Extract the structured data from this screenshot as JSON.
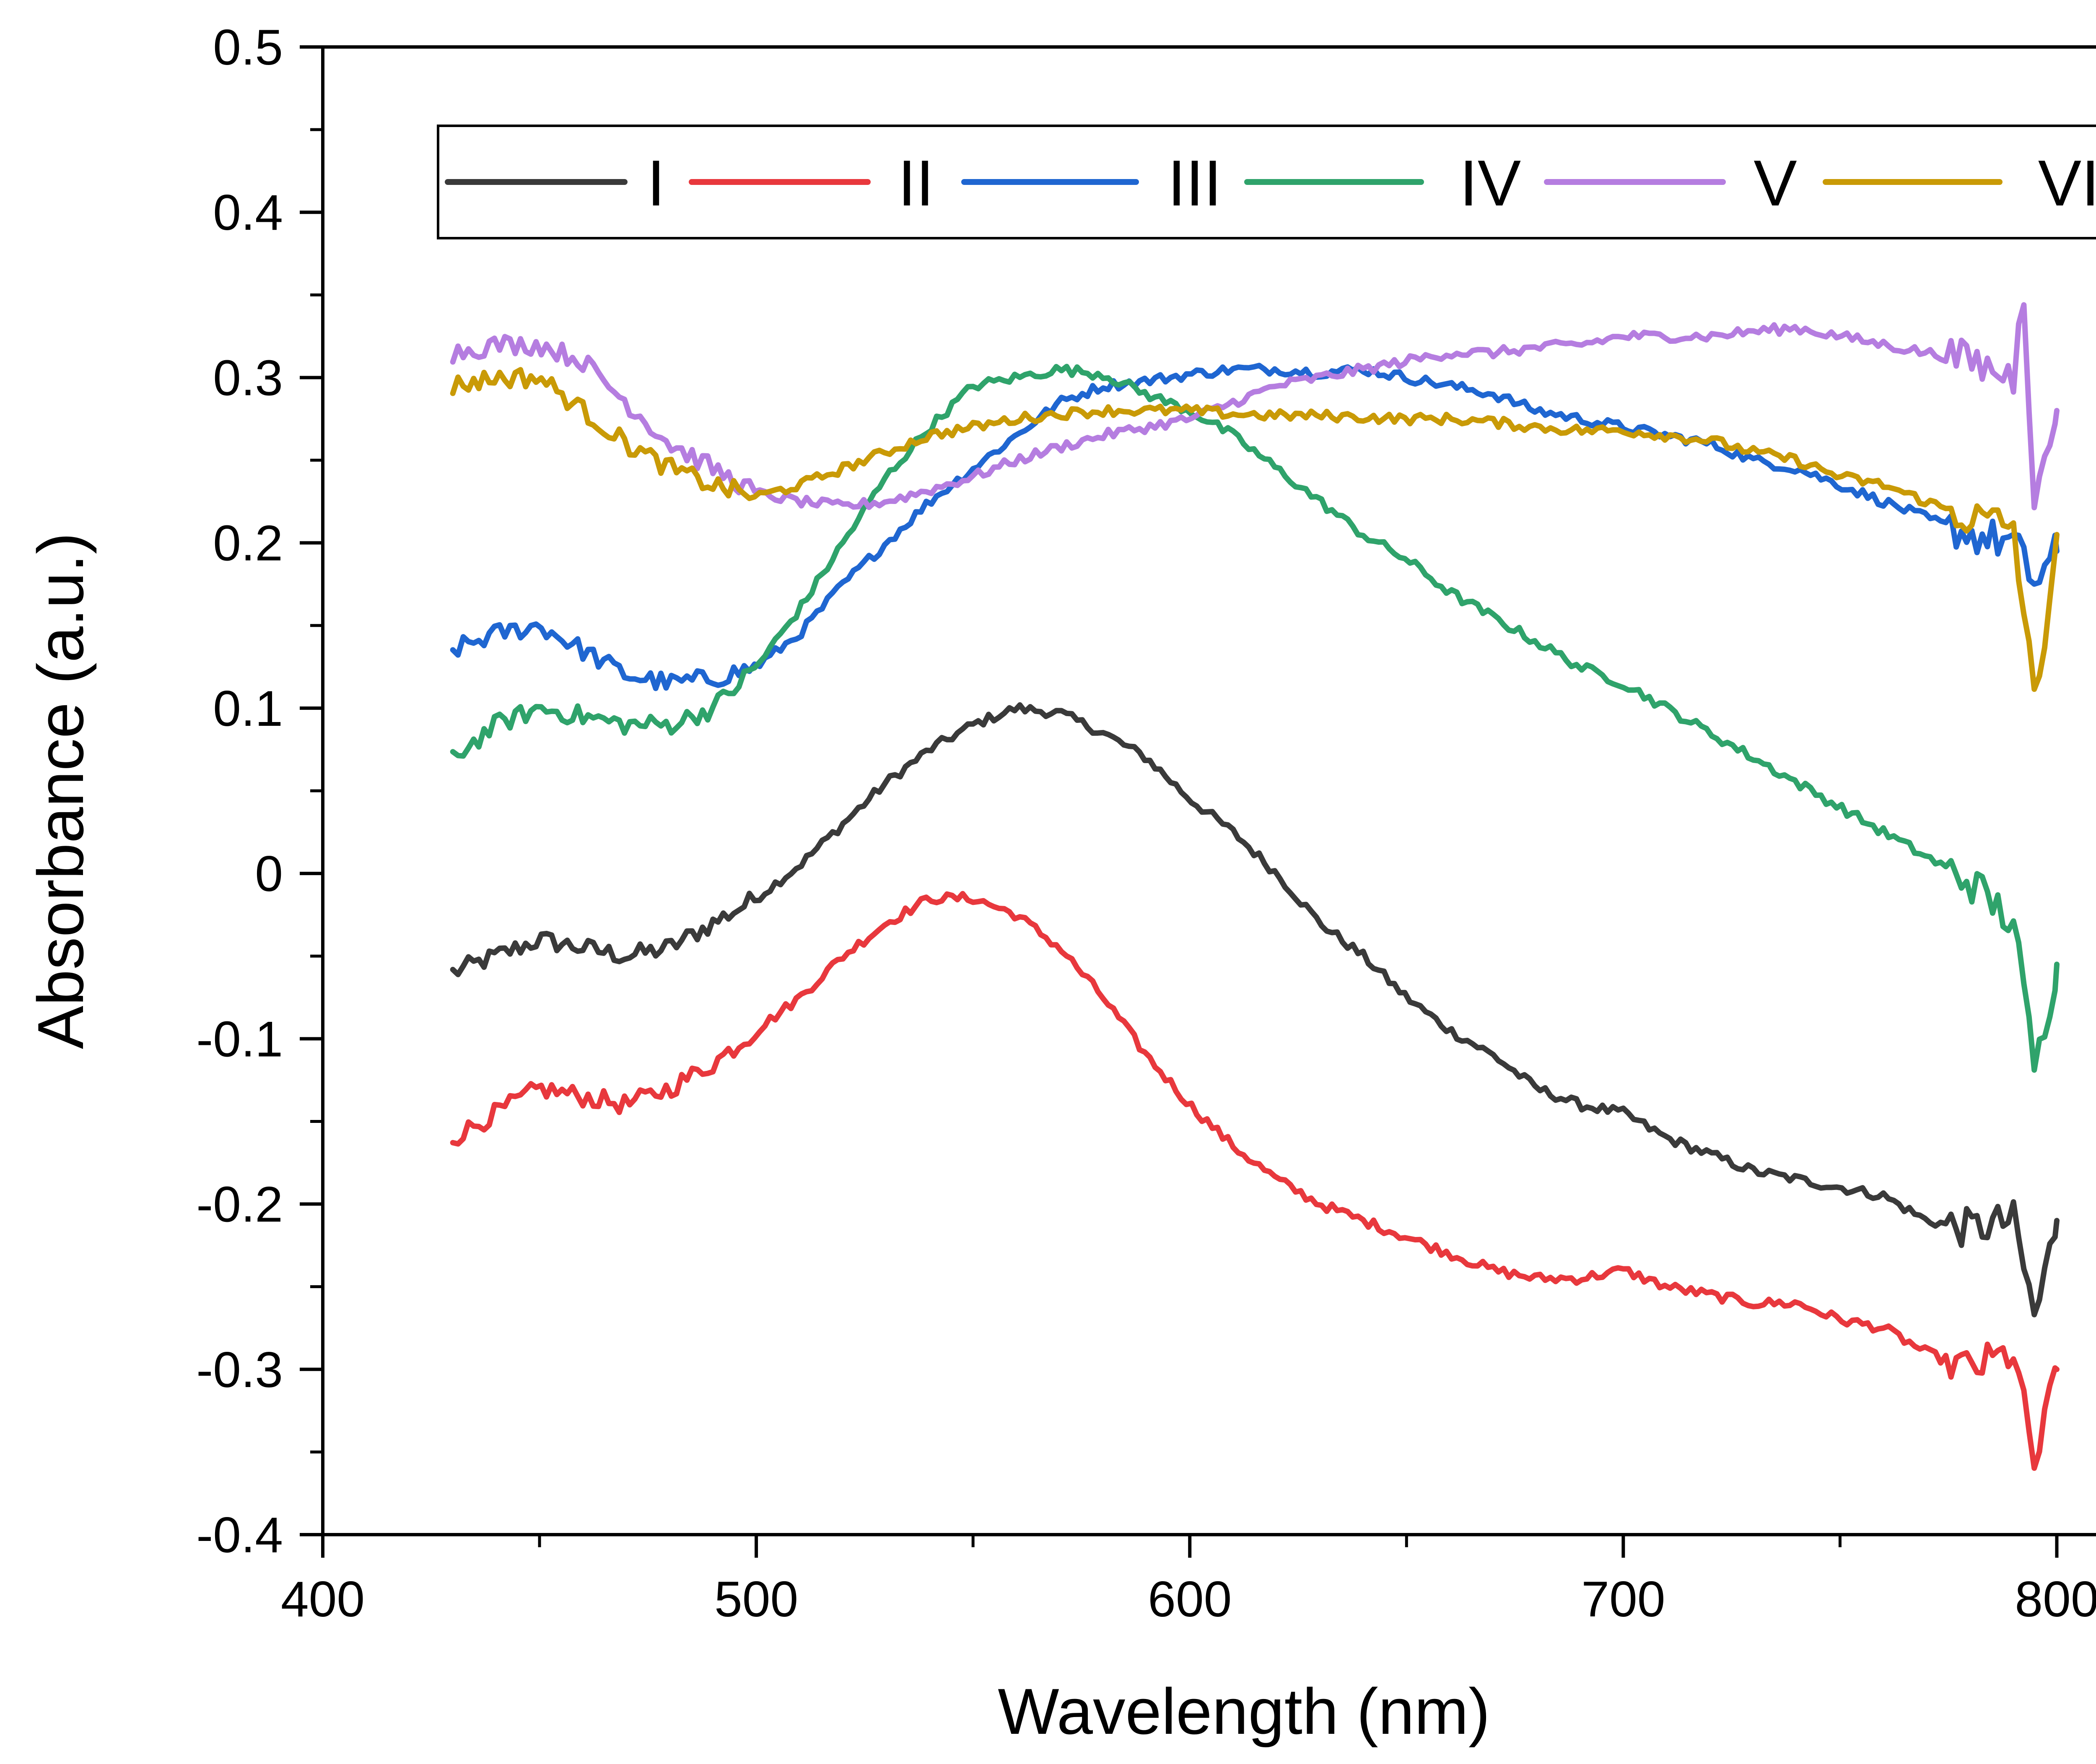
{
  "chart_data": {
    "type": "line",
    "title": "",
    "xlabel": "Wavelength (nm)",
    "ylabel": "Absorbance (a.u.)",
    "xlim": [
      400,
      825
    ],
    "ylim": [
      -0.4,
      0.5
    ],
    "xticks": [
      400,
      500,
      600,
      700,
      800
    ],
    "yticks": [
      -0.4,
      -0.3,
      -0.2,
      -0.1,
      0,
      0.1,
      0.2,
      0.3,
      0.4,
      0.5
    ],
    "xtick_labels": [
      "400",
      "500",
      "600",
      "700",
      "800"
    ],
    "ytick_labels": [
      "-0.4",
      "-0.3",
      "-0.2",
      "-0.1",
      "0",
      "0.1",
      "0.2",
      "0.3",
      "0.4",
      "0.5"
    ],
    "grid": false,
    "legend_position": "top",
    "series": [
      {
        "name": "I",
        "color": "#3a3a3a",
        "x": [
          430,
          440,
          450,
          460,
          470,
          480,
          490,
          500,
          510,
          520,
          530,
          540,
          550,
          560,
          570,
          580,
          590,
          600,
          610,
          620,
          630,
          640,
          650,
          660,
          670,
          680,
          690,
          700,
          710,
          720,
          730,
          740,
          750,
          760,
          770,
          780,
          790,
          795,
          800
        ],
        "y": [
          -0.06,
          -0.05,
          -0.04,
          -0.045,
          -0.05,
          -0.045,
          -0.03,
          -0.015,
          0.005,
          0.03,
          0.055,
          0.075,
          0.09,
          0.1,
          0.097,
          0.085,
          0.07,
          0.045,
          0.025,
          0.0,
          -0.03,
          -0.05,
          -0.075,
          -0.095,
          -0.11,
          -0.13,
          -0.14,
          -0.145,
          -0.16,
          -0.17,
          -0.18,
          -0.185,
          -0.19,
          -0.195,
          -0.21,
          -0.215,
          -0.21,
          -0.27,
          -0.21
        ]
      },
      {
        "name": "II",
        "color": "#e8383d",
        "x": [
          430,
          440,
          450,
          460,
          470,
          480,
          490,
          500,
          510,
          520,
          530,
          540,
          550,
          560,
          570,
          580,
          590,
          600,
          610,
          620,
          630,
          640,
          650,
          660,
          670,
          680,
          690,
          700,
          710,
          720,
          730,
          740,
          750,
          760,
          770,
          780,
          790,
          795,
          800
        ],
        "y": [
          -0.16,
          -0.145,
          -0.13,
          -0.135,
          -0.14,
          -0.13,
          -0.115,
          -0.095,
          -0.075,
          -0.05,
          -0.03,
          -0.015,
          -0.015,
          -0.025,
          -0.045,
          -0.075,
          -0.11,
          -0.14,
          -0.165,
          -0.185,
          -0.2,
          -0.21,
          -0.22,
          -0.23,
          -0.24,
          -0.245,
          -0.245,
          -0.24,
          -0.25,
          -0.255,
          -0.26,
          -0.26,
          -0.27,
          -0.275,
          -0.29,
          -0.3,
          -0.29,
          -0.36,
          -0.3
        ]
      },
      {
        "name": "III",
        "color": "#1f66d1",
        "x": [
          430,
          440,
          450,
          460,
          470,
          480,
          490,
          500,
          510,
          520,
          530,
          540,
          550,
          560,
          570,
          580,
          590,
          600,
          610,
          620,
          630,
          640,
          650,
          660,
          670,
          680,
          690,
          700,
          710,
          720,
          730,
          740,
          750,
          760,
          770,
          780,
          790,
          795,
          800
        ],
        "y": [
          0.135,
          0.145,
          0.15,
          0.135,
          0.12,
          0.115,
          0.118,
          0.125,
          0.145,
          0.175,
          0.2,
          0.225,
          0.245,
          0.265,
          0.285,
          0.295,
          0.298,
          0.302,
          0.305,
          0.305,
          0.303,
          0.305,
          0.3,
          0.295,
          0.29,
          0.28,
          0.275,
          0.27,
          0.265,
          0.26,
          0.25,
          0.245,
          0.235,
          0.225,
          0.215,
          0.205,
          0.2,
          0.175,
          0.195
        ]
      },
      {
        "name": "IV",
        "color": "#2fa36b",
        "x": [
          430,
          440,
          450,
          460,
          470,
          480,
          490,
          500,
          510,
          520,
          530,
          540,
          550,
          560,
          570,
          580,
          590,
          600,
          610,
          620,
          630,
          640,
          650,
          660,
          670,
          680,
          690,
          700,
          710,
          720,
          730,
          740,
          750,
          760,
          770,
          780,
          790,
          795,
          800
        ],
        "y": [
          0.07,
          0.09,
          0.1,
          0.095,
          0.09,
          0.09,
          0.1,
          0.125,
          0.16,
          0.2,
          0.24,
          0.27,
          0.295,
          0.3,
          0.305,
          0.302,
          0.29,
          0.28,
          0.265,
          0.245,
          0.225,
          0.205,
          0.19,
          0.17,
          0.155,
          0.14,
          0.125,
          0.115,
          0.1,
          0.085,
          0.07,
          0.055,
          0.04,
          0.025,
          0.01,
          -0.005,
          -0.03,
          -0.12,
          -0.055
        ]
      },
      {
        "name": "V",
        "color": "#b57de0",
        "x": [
          430,
          440,
          450,
          460,
          470,
          480,
          490,
          500,
          510,
          520,
          530,
          540,
          550,
          560,
          570,
          580,
          590,
          600,
          610,
          620,
          630,
          640,
          650,
          660,
          670,
          680,
          690,
          700,
          710,
          720,
          730,
          740,
          750,
          760,
          770,
          780,
          790,
          792,
          795,
          800
        ],
        "y": [
          0.315,
          0.32,
          0.32,
          0.31,
          0.285,
          0.26,
          0.245,
          0.23,
          0.225,
          0.222,
          0.225,
          0.232,
          0.24,
          0.25,
          0.258,
          0.265,
          0.27,
          0.275,
          0.285,
          0.295,
          0.3,
          0.305,
          0.31,
          0.315,
          0.315,
          0.318,
          0.32,
          0.325,
          0.325,
          0.325,
          0.328,
          0.33,
          0.325,
          0.32,
          0.315,
          0.31,
          0.3,
          0.37,
          0.22,
          0.28
        ]
      },
      {
        "name": "VI",
        "color": "#c99a06",
        "x": [
          430,
          440,
          450,
          460,
          470,
          480,
          490,
          500,
          510,
          520,
          530,
          540,
          550,
          560,
          570,
          580,
          590,
          600,
          610,
          620,
          630,
          640,
          650,
          660,
          670,
          680,
          690,
          700,
          710,
          720,
          730,
          740,
          750,
          760,
          770,
          780,
          790,
          795,
          800
        ],
        "y": [
          0.295,
          0.3,
          0.3,
          0.28,
          0.26,
          0.245,
          0.235,
          0.228,
          0.235,
          0.245,
          0.255,
          0.265,
          0.27,
          0.275,
          0.278,
          0.28,
          0.28,
          0.28,
          0.278,
          0.277,
          0.277,
          0.276,
          0.275,
          0.275,
          0.273,
          0.27,
          0.268,
          0.268,
          0.265,
          0.262,
          0.255,
          0.25,
          0.24,
          0.235,
          0.225,
          0.215,
          0.21,
          0.1,
          0.205
        ]
      }
    ]
  }
}
